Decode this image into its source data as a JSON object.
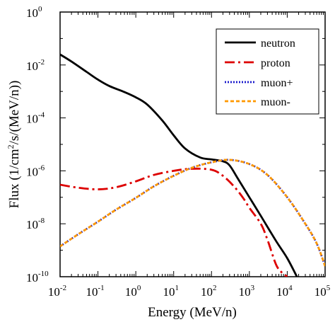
{
  "chart_data": {
    "type": "line",
    "title": "",
    "xlabel": "Energy (MeV/n)",
    "ylabel": "Flux (1/cm²/s/(MeV/n))",
    "ylabel_parts": {
      "pre": "Flux (1/cm",
      "sup": "2",
      "post": "/s/(MeV/n))"
    },
    "x_scale": "log",
    "y_scale": "log",
    "xlim": [
      0.01,
      100000
    ],
    "ylim": [
      1e-10,
      1
    ],
    "x_ticks": [
      {
        "value": 0.01,
        "base": "10",
        "exp": "-2"
      },
      {
        "value": 0.1,
        "base": "10",
        "exp": "-1"
      },
      {
        "value": 1,
        "base": "10",
        "exp": "0"
      },
      {
        "value": 10,
        "base": "10",
        "exp": "1"
      },
      {
        "value": 100,
        "base": "10",
        "exp": "2"
      },
      {
        "value": 1000,
        "base": "10",
        "exp": "3"
      },
      {
        "value": 10000,
        "base": "10",
        "exp": "4"
      },
      {
        "value": 100000,
        "base": "10",
        "exp": "5"
      }
    ],
    "y_ticks": [
      {
        "value": 1e-10,
        "base": "10",
        "exp": "-10"
      },
      {
        "value": 1e-08,
        "base": "10",
        "exp": "-8"
      },
      {
        "value": 1e-06,
        "base": "10",
        "exp": "-6"
      },
      {
        "value": 0.0001,
        "base": "10",
        "exp": "-4"
      },
      {
        "value": 0.01,
        "base": "10",
        "exp": "-2"
      },
      {
        "value": 1,
        "base": "10",
        "exp": "0"
      }
    ],
    "grid": false,
    "legend_position": "top-right",
    "series": [
      {
        "name": "neutron",
        "color": "#000000",
        "style": "solid",
        "x": [
          0.01,
          0.02,
          0.05,
          0.1,
          0.2,
          0.5,
          1,
          2,
          5,
          10,
          20,
          50,
          100,
          200,
          300,
          500,
          1000,
          2000,
          5000,
          10000,
          18000
        ],
        "y": [
          0.025,
          0.0135,
          0.0055,
          0.0028,
          0.0016,
          0.00095,
          0.0006,
          0.00032,
          8e-05,
          2.2e-05,
          7e-06,
          3.2e-06,
          2.7e-06,
          2.3e-06,
          1.6e-06,
          5e-07,
          1e-07,
          2e-08,
          2.3e-09,
          5e-10,
          1e-10
        ]
      },
      {
        "name": "proton",
        "color": "#dd0000",
        "style": "dashdot",
        "x": [
          0.01,
          0.03,
          0.1,
          0.3,
          1,
          3,
          10,
          30,
          100,
          200,
          400,
          700,
          1000,
          2000,
          3000,
          5000,
          7000,
          10000
        ],
        "y": [
          3e-07,
          2.3e-07,
          2e-07,
          2.4e-07,
          4e-07,
          7e-07,
          1e-06,
          1.2e-06,
          1.1e-06,
          6.5e-07,
          2.5e-07,
          9e-08,
          4e-08,
          1e-08,
          2.5e-09,
          3e-10,
          1.5e-10,
          1e-10
        ]
      },
      {
        "name": "muon+",
        "color": "#1a1acc",
        "style": "dotted",
        "x": [
          0.01,
          0.03,
          0.1,
          0.3,
          1,
          3,
          10,
          30,
          100,
          300,
          1000,
          3000,
          10000,
          30000,
          60000,
          100000
        ],
        "y": [
          1.4e-09,
          4e-09,
          1.2e-08,
          3.4e-08,
          9.5e-08,
          2.6e-07,
          6.5e-07,
          1.3e-06,
          2.1e-06,
          2.6e-06,
          1.8e-06,
          7e-07,
          1e-07,
          1e-08,
          1.8e-09,
          2.5e-10
        ]
      },
      {
        "name": "muon-",
        "color": "#ff9900",
        "style": "dashed",
        "x": [
          0.01,
          0.03,
          0.1,
          0.3,
          1,
          3,
          10,
          30,
          100,
          300,
          1000,
          3000,
          10000,
          30000,
          60000,
          100000
        ],
        "y": [
          1.4e-09,
          4e-09,
          1.2e-08,
          3.4e-08,
          9.5e-08,
          2.6e-07,
          6.5e-07,
          1.3e-06,
          2.1e-06,
          2.6e-06,
          1.8e-06,
          7e-07,
          1e-07,
          1e-08,
          1.8e-09,
          2.5e-10
        ]
      }
    ]
  }
}
